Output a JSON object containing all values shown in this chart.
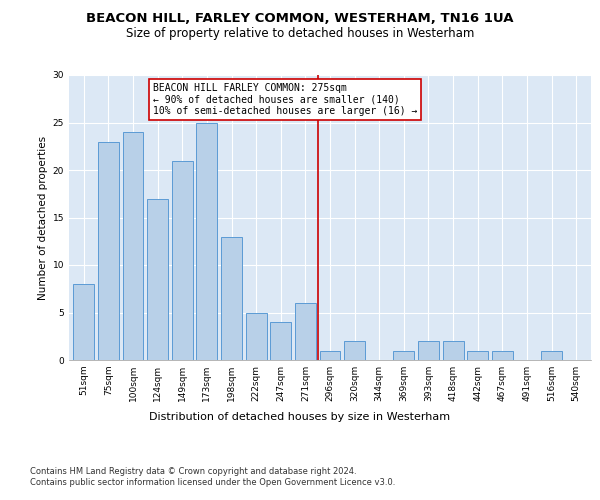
{
  "title": "BEACON HILL, FARLEY COMMON, WESTERHAM, TN16 1UA",
  "subtitle": "Size of property relative to detached houses in Westerham",
  "xlabel": "Distribution of detached houses by size in Westerham",
  "ylabel": "Number of detached properties",
  "categories": [
    "51sqm",
    "75sqm",
    "100sqm",
    "124sqm",
    "149sqm",
    "173sqm",
    "198sqm",
    "222sqm",
    "247sqm",
    "271sqm",
    "296sqm",
    "320sqm",
    "344sqm",
    "369sqm",
    "393sqm",
    "418sqm",
    "442sqm",
    "467sqm",
    "491sqm",
    "516sqm",
    "540sqm"
  ],
  "values": [
    8,
    23,
    24,
    17,
    21,
    25,
    13,
    5,
    4,
    6,
    1,
    2,
    0,
    1,
    2,
    2,
    1,
    1,
    0,
    1,
    0
  ],
  "bar_color": "#b8d0e8",
  "bar_edge_color": "#5b9bd5",
  "vline_color": "#cc0000",
  "annotation_text": "BEACON HILL FARLEY COMMON: 275sqm\n← 90% of detached houses are smaller (140)\n10% of semi-detached houses are larger (16) →",
  "annotation_box_color": "#ffffff",
  "annotation_box_edge": "#cc0000",
  "ylim": [
    0,
    30
  ],
  "yticks": [
    0,
    5,
    10,
    15,
    20,
    25,
    30
  ],
  "background_color": "#dce8f5",
  "grid_color": "#ffffff",
  "fig_background": "#ffffff",
  "footer": "Contains HM Land Registry data © Crown copyright and database right 2024.\nContains public sector information licensed under the Open Government Licence v3.0.",
  "title_fontsize": 9.5,
  "subtitle_fontsize": 8.5,
  "xlabel_fontsize": 8,
  "ylabel_fontsize": 7.5,
  "tick_fontsize": 6.5,
  "annotation_fontsize": 7,
  "footer_fontsize": 6
}
